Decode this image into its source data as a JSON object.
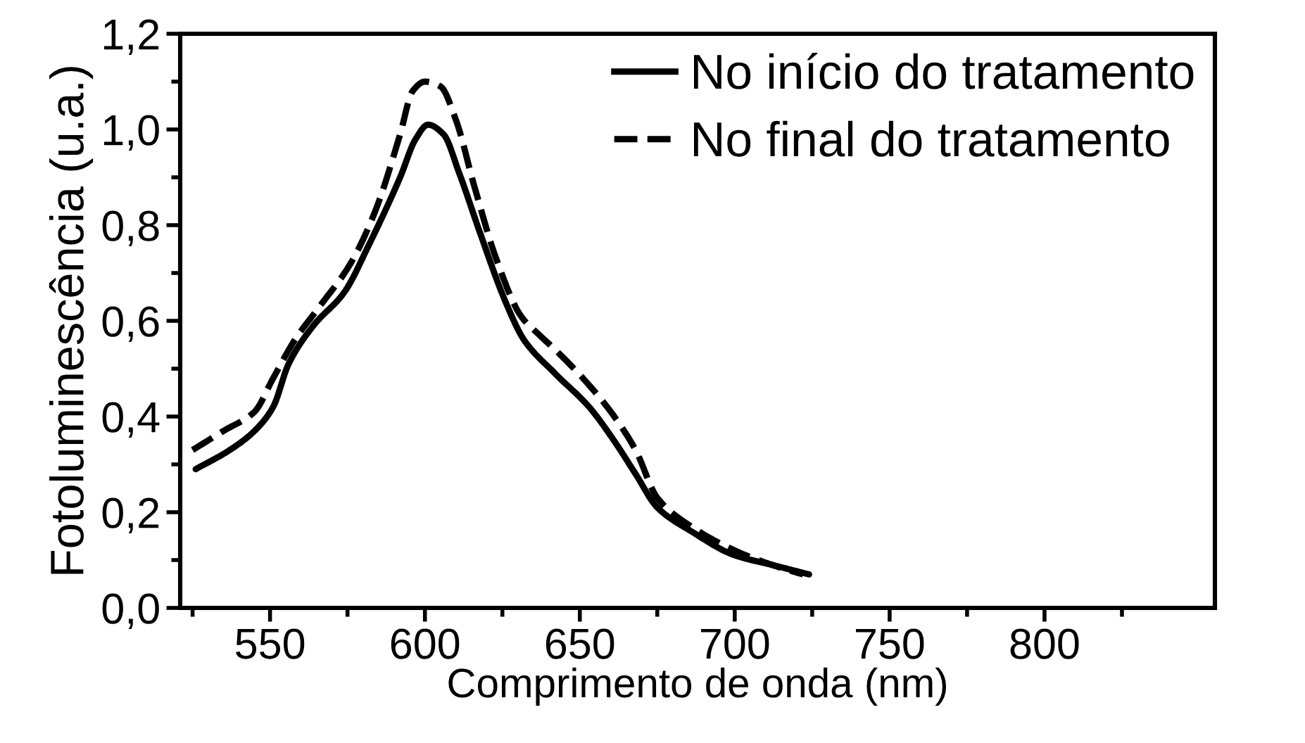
{
  "chart_data": {
    "type": "line",
    "xlabel": "Comprimento de onda (nm)",
    "ylabel": "Fotoluminescência (u.a.)",
    "xlim": [
      521,
      855
    ],
    "ylim": [
      0,
      1.2
    ],
    "xticks": [
      {
        "value": 525,
        "label": null
      },
      550,
      {
        "value": 575,
        "label": null
      },
      600,
      {
        "value": 625,
        "label": null
      },
      650,
      {
        "value": 675,
        "label": null
      },
      700,
      {
        "value": 725,
        "label": null
      },
      750,
      {
        "value": 775,
        "label": null
      },
      800,
      {
        "value": 825,
        "label": null
      }
    ],
    "yticks": [
      {
        "value": 0,
        "label": "0,0"
      },
      {
        "value": 0.1,
        "label": null
      },
      {
        "value": 0.2,
        "label": "0,2"
      },
      {
        "value": 0.3,
        "label": null
      },
      {
        "value": 0.4,
        "label": "0,4"
      },
      {
        "value": 0.5,
        "label": null
      },
      {
        "value": 0.6,
        "label": "0,6"
      },
      {
        "value": 0.7,
        "label": null
      },
      {
        "value": 0.8,
        "label": "0,8"
      },
      {
        "value": 0.9,
        "label": null
      },
      {
        "value": 1.0,
        "label": "1,0"
      },
      {
        "value": 1.1,
        "label": null
      },
      {
        "value": 1.2,
        "label": "1,2"
      }
    ],
    "legend": "top right",
    "series": [
      {
        "name": "No início do tratamento",
        "color": "#000000",
        "line_style": "solid",
        "x": [
          526,
          537,
          545,
          551,
          556,
          564,
          574,
          582,
          592,
          597,
          601,
          606,
          611,
          618,
          626,
          632,
          642,
          653,
          661,
          668,
          675,
          686,
          700,
          712,
          724
        ],
        "values": [
          0.29,
          0.33,
          0.37,
          0.42,
          0.51,
          0.59,
          0.66,
          0.76,
          0.9,
          0.98,
          1.01,
          0.99,
          0.91,
          0.78,
          0.64,
          0.56,
          0.49,
          0.42,
          0.35,
          0.28,
          0.21,
          0.16,
          0.11,
          0.09,
          0.07
        ]
      },
      {
        "name": "No final do tratamento",
        "color": "#000000",
        "line_style": "dashed",
        "x": [
          525,
          535,
          545,
          551,
          558,
          566,
          576,
          584,
          592,
          596,
          600,
          605,
          610,
          616,
          623,
          631,
          637,
          642,
          651,
          660,
          668,
          675,
          686,
          700,
          712,
          722
        ],
        "values": [
          0.33,
          0.37,
          0.41,
          0.48,
          0.56,
          0.63,
          0.72,
          0.83,
          0.99,
          1.08,
          1.1,
          1.09,
          1.02,
          0.88,
          0.73,
          0.61,
          0.57,
          0.54,
          0.48,
          0.41,
          0.33,
          0.23,
          0.17,
          0.12,
          0.09,
          0.07
        ]
      }
    ]
  }
}
